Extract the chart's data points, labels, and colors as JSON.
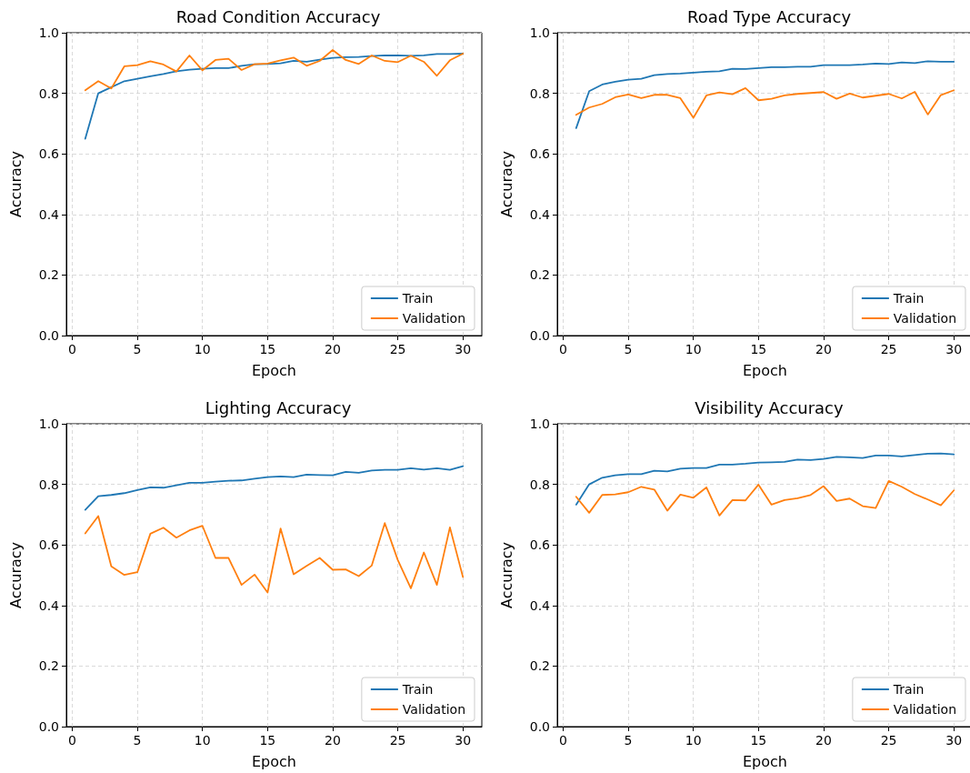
{
  "chart_data": [
    {
      "type": "line",
      "title": "Road Condition Accuracy",
      "xlabel": "Epoch",
      "ylabel": "Accuracy",
      "x": [
        1,
        2,
        3,
        4,
        5,
        6,
        7,
        8,
        9,
        10,
        11,
        12,
        13,
        14,
        15,
        16,
        17,
        18,
        19,
        20,
        21,
        22,
        23,
        24,
        25,
        26,
        27,
        28,
        29,
        30
      ],
      "series": [
        {
          "name": "Train",
          "color": "#1f77b4",
          "values": [
            0.65,
            0.8,
            0.82,
            0.84,
            0.848,
            0.856,
            0.864,
            0.873,
            0.878,
            0.881,
            0.883,
            0.883,
            0.891,
            0.896,
            0.897,
            0.899,
            0.907,
            0.904,
            0.911,
            0.917,
            0.919,
            0.92,
            0.923,
            0.925,
            0.925,
            0.924,
            0.925,
            0.93,
            0.93,
            0.931
          ]
        },
        {
          "name": "Validation",
          "color": "#ff7f0e",
          "values": [
            0.81,
            0.84,
            0.816,
            0.889,
            0.893,
            0.906,
            0.895,
            0.872,
            0.925,
            0.876,
            0.91,
            0.914,
            0.877,
            0.896,
            0.898,
            0.909,
            0.918,
            0.891,
            0.907,
            0.943,
            0.91,
            0.897,
            0.925,
            0.907,
            0.903,
            0.924,
            0.904,
            0.858,
            0.909,
            0.931
          ]
        }
      ],
      "xlim": [
        -0.45,
        31.45
      ],
      "xticks": [
        0,
        5,
        10,
        15,
        20,
        25,
        30
      ],
      "ylim": [
        0,
        1
      ],
      "yticks": [
        {
          "value": 0,
          "label": "0.0"
        },
        {
          "value": 0.2,
          "label": "0.2"
        },
        {
          "value": 0.4,
          "label": "0.4"
        },
        {
          "value": 0.6,
          "label": "0.6"
        },
        {
          "value": 0.8,
          "label": "0.8"
        },
        {
          "value": 1,
          "label": "1.0"
        }
      ],
      "grid": true,
      "legend": "bottom right",
      "marker": "none",
      "line_style": "solid"
    },
    {
      "type": "line",
      "title": "Road Type Accuracy",
      "xlabel": "Epoch",
      "ylabel": "Accuracy",
      "x": [
        1,
        2,
        3,
        4,
        5,
        6,
        7,
        8,
        9,
        10,
        11,
        12,
        13,
        14,
        15,
        16,
        17,
        18,
        19,
        20,
        21,
        22,
        23,
        24,
        25,
        26,
        27,
        28,
        29,
        30
      ],
      "series": [
        {
          "name": "Train",
          "color": "#1f77b4",
          "values": [
            0.685,
            0.807,
            0.829,
            0.838,
            0.845,
            0.848,
            0.86,
            0.864,
            0.865,
            0.868,
            0.871,
            0.873,
            0.881,
            0.88,
            0.883,
            0.886,
            0.886,
            0.888,
            0.888,
            0.893,
            0.893,
            0.893,
            0.895,
            0.898,
            0.897,
            0.902,
            0.9,
            0.906,
            0.904,
            0.904
          ]
        },
        {
          "name": "Validation",
          "color": "#ff7f0e",
          "values": [
            0.729,
            0.753,
            0.765,
            0.787,
            0.796,
            0.784,
            0.795,
            0.795,
            0.784,
            0.719,
            0.793,
            0.803,
            0.797,
            0.817,
            0.777,
            0.782,
            0.793,
            0.798,
            0.801,
            0.804,
            0.782,
            0.799,
            0.786,
            0.792,
            0.798,
            0.783,
            0.805,
            0.73,
            0.794,
            0.81
          ]
        }
      ],
      "xlim": [
        -0.45,
        31.45
      ],
      "xticks": [
        0,
        5,
        10,
        15,
        20,
        25,
        30
      ],
      "ylim": [
        0,
        1
      ],
      "yticks": [
        {
          "value": 0,
          "label": "0.0"
        },
        {
          "value": 0.2,
          "label": "0.2"
        },
        {
          "value": 0.4,
          "label": "0.4"
        },
        {
          "value": 0.6,
          "label": "0.6"
        },
        {
          "value": 0.8,
          "label": "0.8"
        },
        {
          "value": 1,
          "label": "1.0"
        }
      ],
      "grid": true,
      "legend": "bottom right",
      "marker": "none",
      "line_style": "solid"
    },
    {
      "type": "line",
      "title": "Lighting Accuracy",
      "xlabel": "Epoch",
      "ylabel": "Accuracy",
      "x": [
        1,
        2,
        3,
        4,
        5,
        6,
        7,
        8,
        9,
        10,
        11,
        12,
        13,
        14,
        15,
        16,
        17,
        18,
        19,
        20,
        21,
        22,
        23,
        24,
        25,
        26,
        27,
        28,
        29,
        30
      ],
      "series": [
        {
          "name": "Train",
          "color": "#1f77b4",
          "values": [
            0.716,
            0.761,
            0.765,
            0.771,
            0.781,
            0.79,
            0.789,
            0.797,
            0.805,
            0.805,
            0.809,
            0.812,
            0.813,
            0.819,
            0.824,
            0.826,
            0.824,
            0.832,
            0.831,
            0.83,
            0.841,
            0.838,
            0.846,
            0.848,
            0.848,
            0.853,
            0.849,
            0.853,
            0.848,
            0.86
          ]
        },
        {
          "name": "Validation",
          "color": "#ff7f0e",
          "values": [
            0.638,
            0.695,
            0.529,
            0.501,
            0.51,
            0.637,
            0.657,
            0.624,
            0.648,
            0.663,
            0.557,
            0.557,
            0.468,
            0.502,
            0.443,
            0.654,
            0.503,
            0.531,
            0.557,
            0.518,
            0.519,
            0.497,
            0.532,
            0.672,
            0.55,
            0.457,
            0.575,
            0.468,
            0.658,
            0.494
          ]
        }
      ],
      "xlim": [
        -0.45,
        31.45
      ],
      "xticks": [
        0,
        5,
        10,
        15,
        20,
        25,
        30
      ],
      "ylim": [
        0,
        1
      ],
      "yticks": [
        {
          "value": 0,
          "label": "0.0"
        },
        {
          "value": 0.2,
          "label": "0.2"
        },
        {
          "value": 0.4,
          "label": "0.4"
        },
        {
          "value": 0.6,
          "label": "0.6"
        },
        {
          "value": 0.8,
          "label": "0.8"
        },
        {
          "value": 1,
          "label": "1.0"
        }
      ],
      "grid": true,
      "legend": "bottom right",
      "marker": "none",
      "line_style": "solid"
    },
    {
      "type": "line",
      "title": "Visibility Accuracy",
      "xlabel": "Epoch",
      "ylabel": "Accuracy",
      "x": [
        1,
        2,
        3,
        4,
        5,
        6,
        7,
        8,
        9,
        10,
        11,
        12,
        13,
        14,
        15,
        16,
        17,
        18,
        19,
        20,
        21,
        22,
        23,
        24,
        25,
        26,
        27,
        28,
        29,
        30
      ],
      "series": [
        {
          "name": "Train",
          "color": "#1f77b4",
          "values": [
            0.733,
            0.8,
            0.822,
            0.83,
            0.834,
            0.834,
            0.845,
            0.843,
            0.852,
            0.854,
            0.854,
            0.865,
            0.865,
            0.868,
            0.872,
            0.873,
            0.874,
            0.882,
            0.88,
            0.884,
            0.891,
            0.889,
            0.887,
            0.895,
            0.895,
            0.892,
            0.897,
            0.901,
            0.902,
            0.899
          ]
        },
        {
          "name": "Validation",
          "color": "#ff7f0e",
          "values": [
            0.759,
            0.706,
            0.765,
            0.767,
            0.774,
            0.792,
            0.783,
            0.713,
            0.766,
            0.756,
            0.79,
            0.697,
            0.748,
            0.747,
            0.799,
            0.733,
            0.748,
            0.754,
            0.765,
            0.794,
            0.745,
            0.753,
            0.728,
            0.722,
            0.811,
            0.792,
            0.768,
            0.75,
            0.731,
            0.78
          ]
        }
      ],
      "xlim": [
        -0.45,
        31.45
      ],
      "xticks": [
        0,
        5,
        10,
        15,
        20,
        25,
        30
      ],
      "ylim": [
        0,
        1
      ],
      "yticks": [
        {
          "value": 0,
          "label": "0.0"
        },
        {
          "value": 0.2,
          "label": "0.2"
        },
        {
          "value": 0.4,
          "label": "0.4"
        },
        {
          "value": 0.6,
          "label": "0.6"
        },
        {
          "value": 0.8,
          "label": "0.8"
        },
        {
          "value": 1,
          "label": "1.0"
        }
      ],
      "grid": true,
      "legend": "bottom right",
      "marker": "none",
      "line_style": "solid"
    }
  ]
}
